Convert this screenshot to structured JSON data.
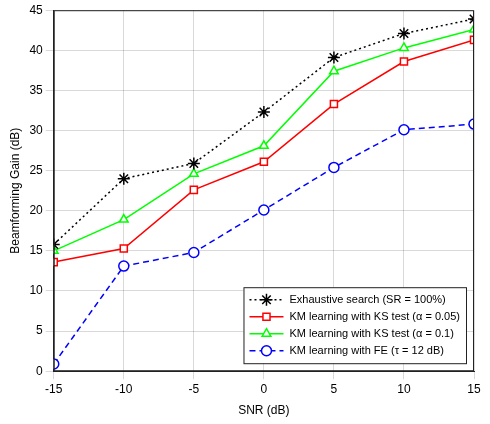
{
  "chart_data": {
    "type": "line",
    "x_label": "SNR (dB)",
    "y_label": "Beamforming Gain (dB)",
    "x": [
      -15,
      -10,
      -5,
      0,
      5,
      10,
      15
    ],
    "xlim": [
      -15,
      15
    ],
    "xticks": [
      -15,
      -10,
      -5,
      0,
      5,
      10,
      15
    ],
    "ylim": [
      0,
      45
    ],
    "yticks": [
      0,
      5,
      10,
      15,
      20,
      25,
      30,
      35,
      40,
      45
    ],
    "grid": true,
    "legend": "lower right",
    "series": [
      {
        "name": "Exhaustive search (SR = 100%)",
        "color": "#000000",
        "marker": "star",
        "line_style": "dotted",
        "values": [
          15.8,
          24.0,
          25.9,
          32.3,
          39.1,
          42.1,
          43.9
        ]
      },
      {
        "name": "KM learning with KS test (α = 0.05)",
        "color": "#ff0000",
        "marker": "square",
        "line_style": "solid",
        "values": [
          13.6,
          15.3,
          22.6,
          26.1,
          33.3,
          38.6,
          41.3
        ]
      },
      {
        "name": "KM learning with KS test (α = 0.1)",
        "color": "#00ff00",
        "marker": "triangle",
        "line_style": "solid",
        "values": [
          15.0,
          18.9,
          24.6,
          28.1,
          37.4,
          40.3,
          42.6
        ]
      },
      {
        "name": "KM learning with FE (τ = 12 dB)",
        "color": "#0000ff",
        "marker": "circle",
        "line_style": "dashed",
        "values": [
          0.9,
          13.1,
          14.8,
          20.1,
          25.4,
          30.1,
          30.8
        ]
      }
    ]
  }
}
